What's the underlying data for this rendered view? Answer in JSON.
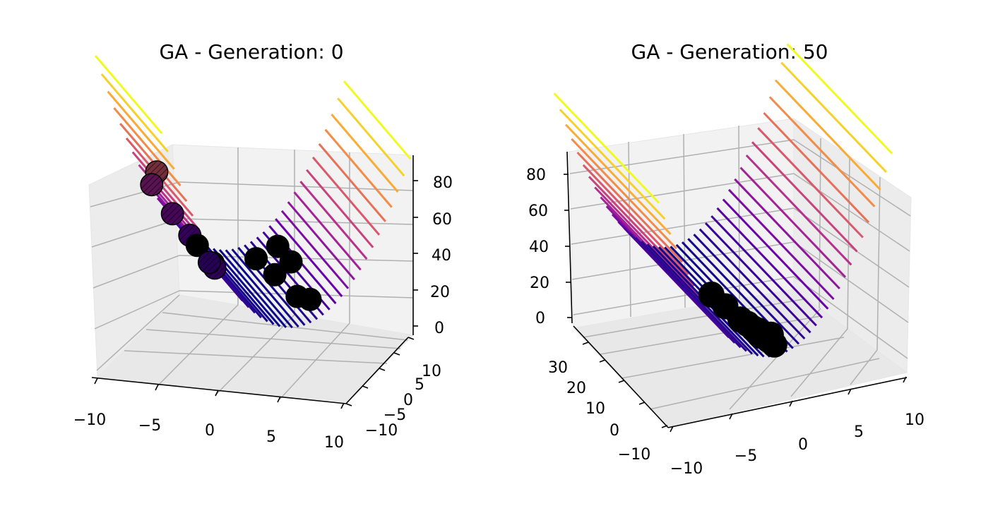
{
  "colors": {
    "background": "#ffffff",
    "points": "#000000",
    "grid": "#b0b0b0",
    "pane": "#f2f2f2",
    "colormap": [
      "#0d0887",
      "#6a00a8",
      "#b12a90",
      "#e16462",
      "#fca636",
      "#f0f921"
    ]
  },
  "chart_data": [
    {
      "type": "scatter",
      "surface": "z = x^2 (surface plot, plasma colormap)",
      "title": "GA - Generation: 0",
      "xlabel": "",
      "ylabel": "",
      "zlabel": "",
      "x_ticks": [
        "−10",
        "−5",
        "0",
        "5",
        "10"
      ],
      "y_ticks": [
        "−10",
        "−5",
        "0",
        "5",
        "10"
      ],
      "z_ticks": [
        "0",
        "20",
        "40",
        "60",
        "80"
      ],
      "xlim": [
        -10,
        10
      ],
      "ylim": [
        -10,
        10
      ],
      "zlim": [
        0,
        90
      ],
      "grid": true,
      "points": [
        {
          "x": -7.2,
          "y": 2.0,
          "z": 55
        },
        {
          "x": -6.0,
          "y": 8.0,
          "z": 36
        },
        {
          "x": -4.0,
          "y": 4.0,
          "z": 18
        },
        {
          "x": -2.6,
          "y": 7.0,
          "z": 7
        },
        {
          "x": -2.4,
          "y": 3.0,
          "z": 6
        },
        {
          "x": -4.0,
          "y": -3.5,
          "z": 16
        },
        {
          "x": -5.0,
          "y": 5.5,
          "z": 26
        },
        {
          "x": -3.5,
          "y": 0.0,
          "z": 12
        },
        {
          "x": 2.0,
          "y": 6.5,
          "z": 4
        },
        {
          "x": 2.3,
          "y": 2.0,
          "z": 5
        },
        {
          "x": 3.6,
          "y": 6.0,
          "z": 13
        },
        {
          "x": 3.6,
          "y": 2.0,
          "z": 13
        },
        {
          "x": 2.5,
          "y": -4.0,
          "z": 6
        },
        {
          "x": 3.0,
          "y": -6.0,
          "z": 9
        }
      ]
    },
    {
      "type": "scatter",
      "surface": "z = x^2 (surface plot, plasma colormap)",
      "title": "GA - Generation: 50",
      "xlabel": "",
      "ylabel": "",
      "zlabel": "",
      "x_ticks": [
        "−10",
        "−5",
        "0",
        "5",
        "10"
      ],
      "y_ticks": [
        "−10",
        "0",
        "10",
        "20",
        "30"
      ],
      "z_ticks": [
        "0",
        "20",
        "40",
        "60",
        "80"
      ],
      "xlim": [
        -10,
        10
      ],
      "ylim": [
        -10,
        35
      ],
      "zlim": [
        0,
        90
      ],
      "grid": true,
      "points": [
        {
          "x": -0.5,
          "y": 15,
          "z": 1
        },
        {
          "x": -0.3,
          "y": 10,
          "z": 1
        },
        {
          "x": 0.0,
          "y": 5,
          "z": 0
        },
        {
          "x": 0.2,
          "y": 3,
          "z": 0
        },
        {
          "x": 0.3,
          "y": 1,
          "z": 0
        },
        {
          "x": 0.5,
          "y": 0,
          "z": 0
        },
        {
          "x": 0.3,
          "y": -2,
          "z": 0
        },
        {
          "x": 0.6,
          "y": -4,
          "z": 0
        },
        {
          "x": 0.7,
          "y": -6,
          "z": 0
        },
        {
          "x": 1.0,
          "y": -3,
          "z": 1
        }
      ]
    }
  ]
}
